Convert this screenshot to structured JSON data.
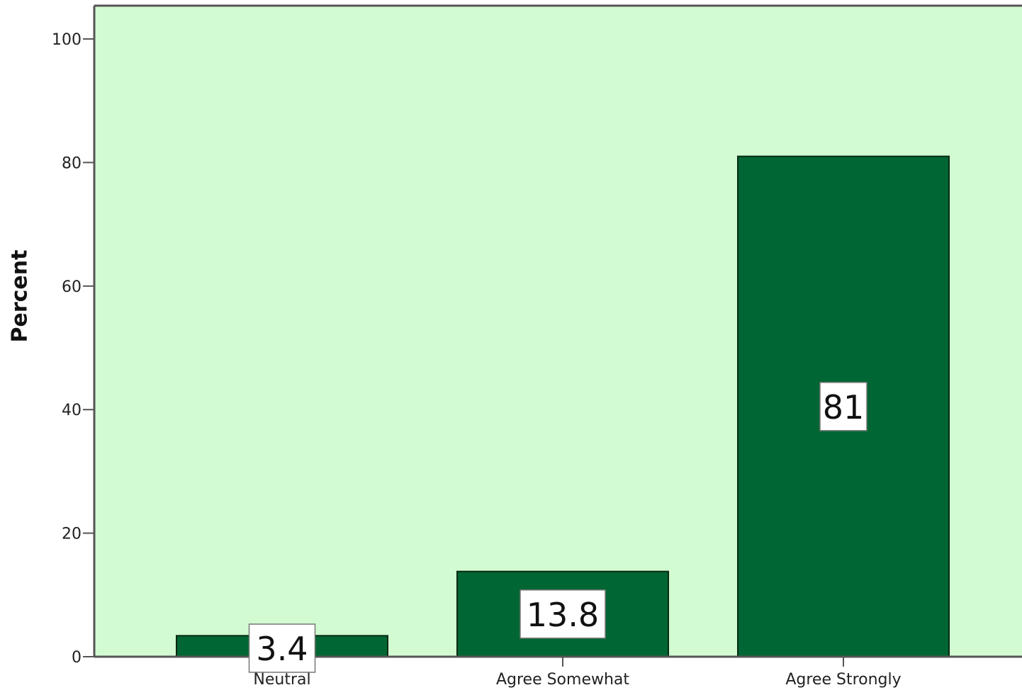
{
  "chart_data": {
    "type": "bar",
    "categories": [
      "Neutral",
      "Agree Somewhat",
      "Agree Strongly"
    ],
    "values": [
      3.4,
      13.8,
      81
    ],
    "data_labels": [
      "3.4",
      "13.8",
      "81"
    ],
    "title": "",
    "xlabel": "",
    "ylabel": "Percent",
    "ylim": [
      0,
      100
    ],
    "yticks": [
      0,
      20,
      40,
      60,
      80,
      100
    ],
    "grid": false,
    "legend": "none",
    "colors": {
      "plot_background": "#d2fbd2",
      "bar_fill": "#006633",
      "bar_stroke": "#0a2a14",
      "axis": "#555555",
      "label_box": "#ffffff"
    }
  }
}
